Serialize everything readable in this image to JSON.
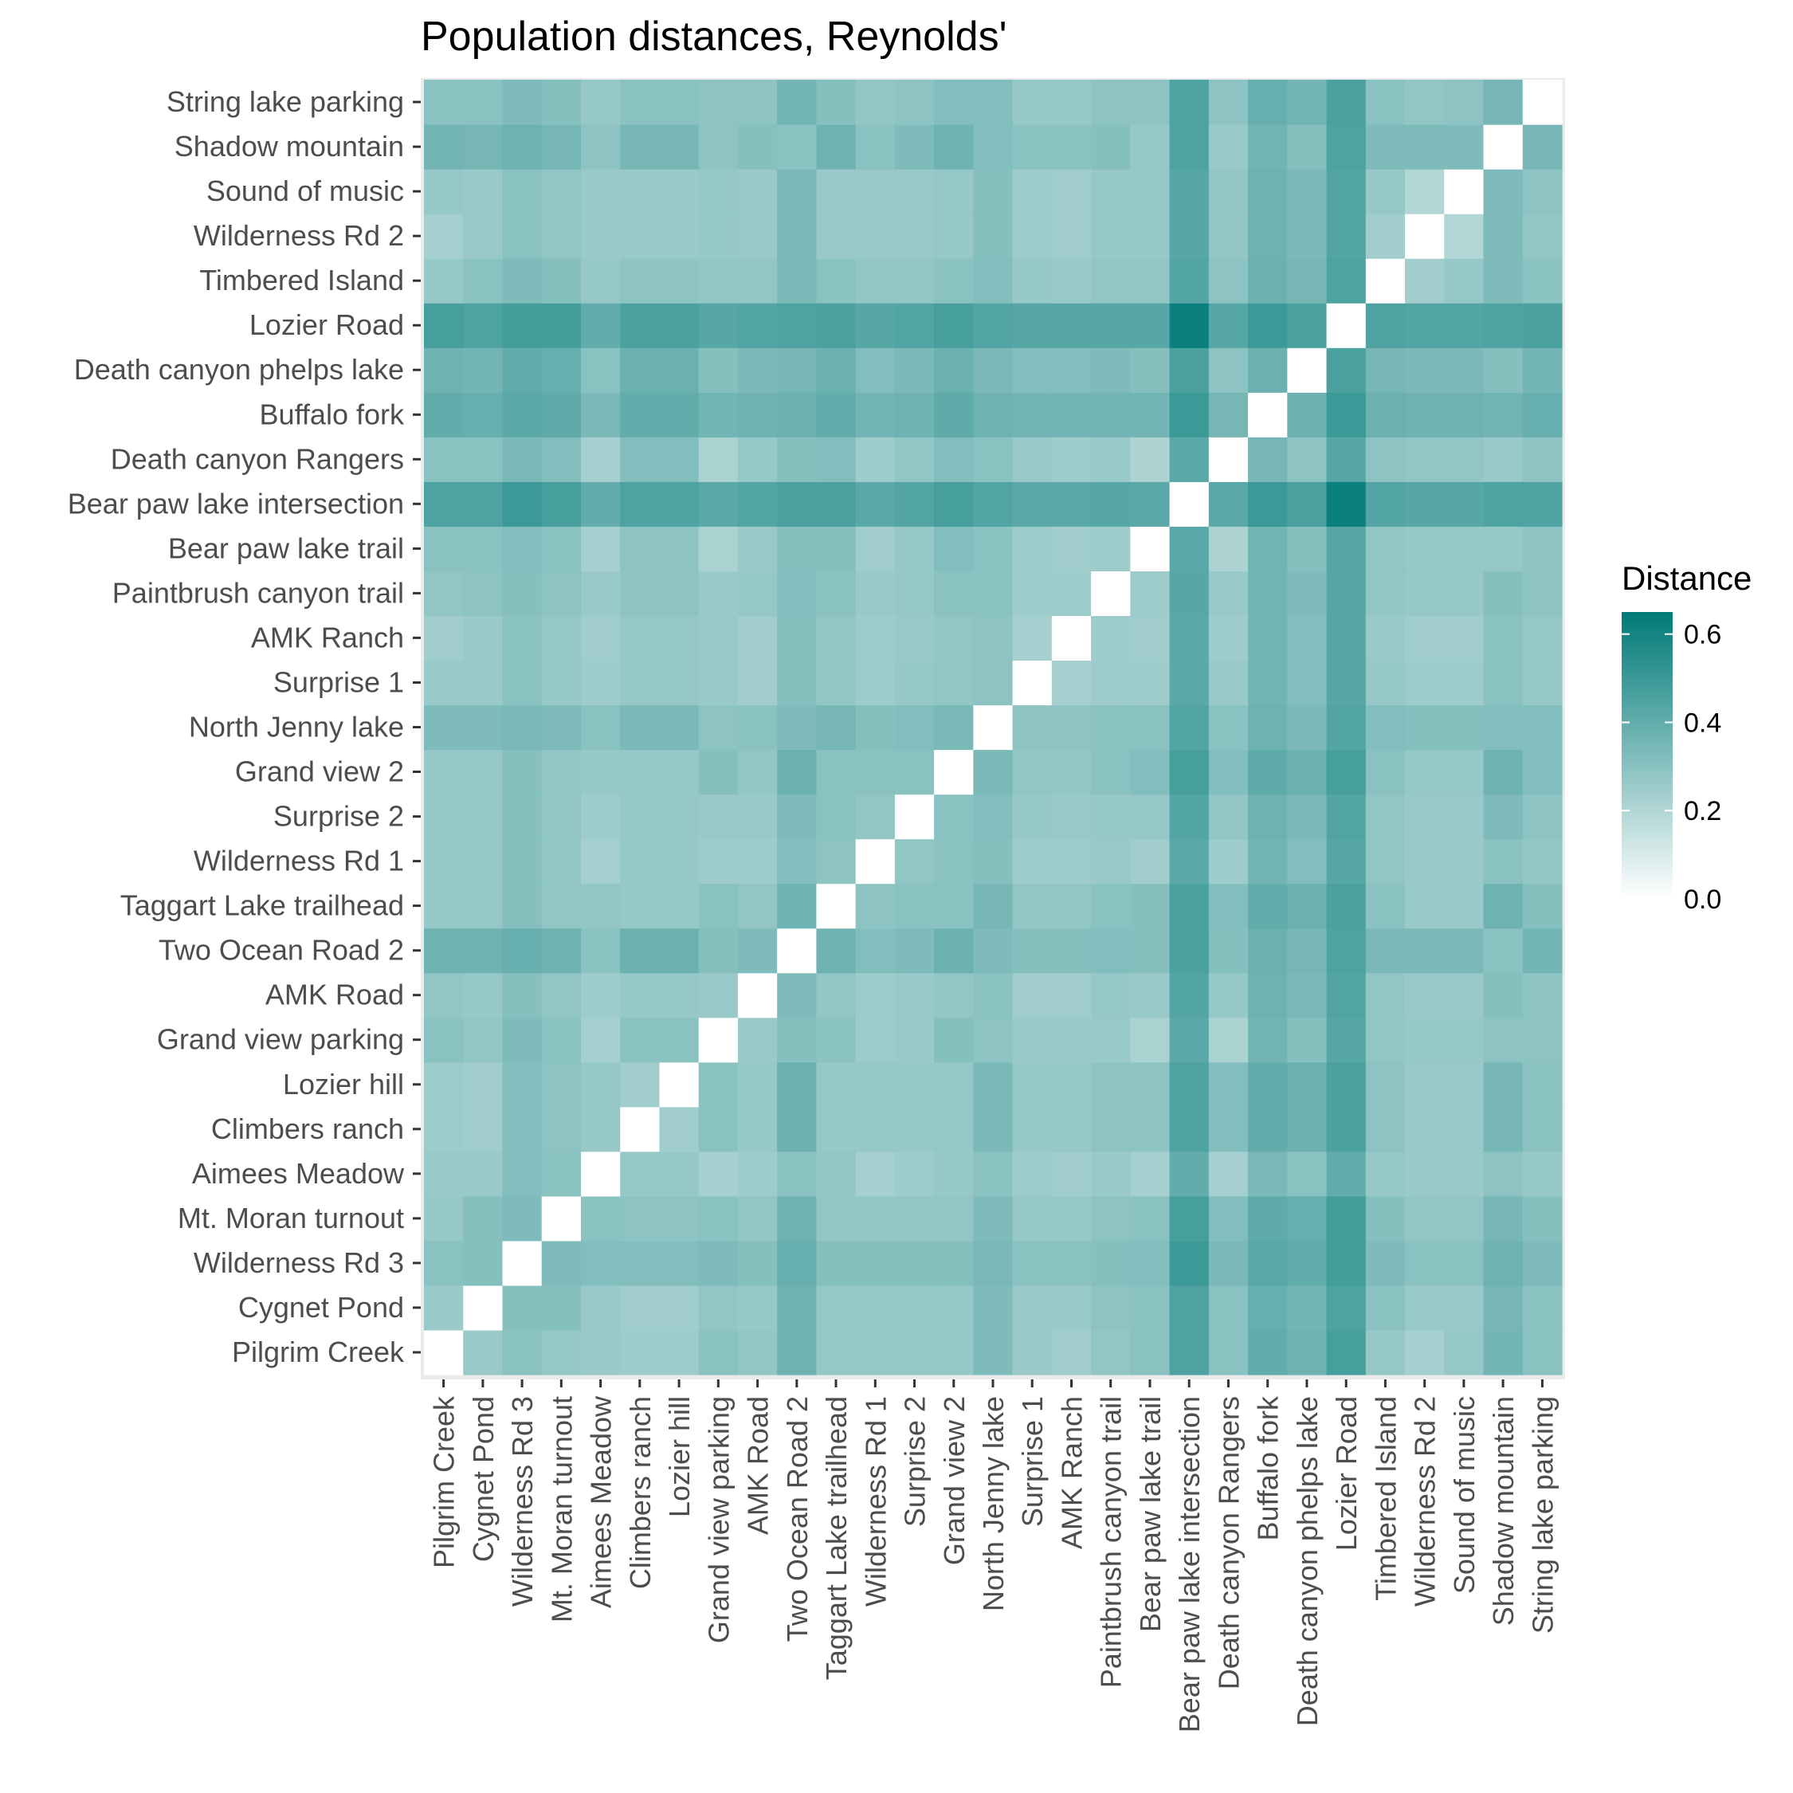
{
  "chart_data": {
    "type": "heatmap",
    "title": "Population distances, Reynolds'",
    "xlabel": "",
    "ylabel": "",
    "legend": {
      "title": "Distance",
      "position": "right",
      "ticks": [
        0.0,
        0.2,
        0.4,
        0.6
      ],
      "tick_labels": [
        "0.0",
        "0.2",
        "0.4",
        "0.6"
      ],
      "range": [
        0,
        0.65
      ]
    },
    "color_scale": {
      "low": "#ffffff",
      "high": "#007a78"
    },
    "panel_background": "#ebebeb",
    "categories": [
      "Pilgrim Creek",
      "Cygnet Pond",
      "Wilderness Rd 3",
      "Mt. Moran turnout",
      "Aimees Meadow",
      "Climbers ranch",
      "Lozier hill",
      "Grand view parking",
      "AMK Road",
      "Two Ocean Road 2",
      "Taggart Lake trailhead",
      "Wilderness Rd 1",
      "Surprise 2",
      "Grand view 2",
      "North Jenny lake",
      "Surprise 1",
      "AMK Ranch",
      "Paintbrush canyon trail",
      "Bear paw lake trail",
      "Bear paw lake intersection",
      "Death canyon Rangers",
      "Buffalo fork",
      "Death canyon phelps lake",
      "Lozier Road",
      "Timbered Island",
      "Wilderness Rd 2",
      "Sound of music",
      "Shadow mountain",
      "String lake parking"
    ],
    "values": [
      [
        0,
        0.26,
        0.3,
        0.27,
        0.26,
        0.25,
        0.25,
        0.3,
        0.28,
        0.37,
        0.27,
        0.27,
        0.27,
        0.27,
        0.33,
        0.26,
        0.24,
        0.28,
        0.3,
        0.45,
        0.3,
        0.4,
        0.37,
        0.47,
        0.27,
        0.23,
        0.27,
        0.36,
        0.3
      ],
      [
        0.26,
        0,
        0.31,
        0.31,
        0.26,
        0.24,
        0.24,
        0.28,
        0.27,
        0.37,
        0.27,
        0.27,
        0.27,
        0.27,
        0.33,
        0.26,
        0.26,
        0.29,
        0.3,
        0.45,
        0.3,
        0.39,
        0.36,
        0.45,
        0.3,
        0.26,
        0.26,
        0.35,
        0.3
      ],
      [
        0.3,
        0.31,
        0,
        0.33,
        0.32,
        0.32,
        0.32,
        0.33,
        0.31,
        0.39,
        0.31,
        0.31,
        0.31,
        0.31,
        0.34,
        0.3,
        0.3,
        0.31,
        0.32,
        0.5,
        0.34,
        0.42,
        0.4,
        0.48,
        0.33,
        0.3,
        0.3,
        0.37,
        0.33
      ],
      [
        0.27,
        0.31,
        0.33,
        0,
        0.3,
        0.29,
        0.29,
        0.3,
        0.28,
        0.37,
        0.28,
        0.28,
        0.28,
        0.28,
        0.33,
        0.27,
        0.27,
        0.29,
        0.3,
        0.47,
        0.32,
        0.41,
        0.39,
        0.48,
        0.31,
        0.28,
        0.28,
        0.35,
        0.31
      ],
      [
        0.26,
        0.26,
        0.32,
        0.3,
        0,
        0.27,
        0.27,
        0.23,
        0.25,
        0.3,
        0.28,
        0.23,
        0.25,
        0.27,
        0.3,
        0.25,
        0.24,
        0.26,
        0.23,
        0.4,
        0.23,
        0.34,
        0.3,
        0.4,
        0.27,
        0.26,
        0.26,
        0.29,
        0.27
      ],
      [
        0.25,
        0.24,
        0.32,
        0.29,
        0.27,
        0,
        0.24,
        0.3,
        0.27,
        0.38,
        0.27,
        0.27,
        0.27,
        0.27,
        0.34,
        0.27,
        0.27,
        0.29,
        0.29,
        0.45,
        0.32,
        0.4,
        0.38,
        0.46,
        0.29,
        0.26,
        0.26,
        0.35,
        0.3
      ],
      [
        0.25,
        0.24,
        0.32,
        0.29,
        0.27,
        0.24,
        0,
        0.3,
        0.27,
        0.38,
        0.27,
        0.27,
        0.27,
        0.27,
        0.34,
        0.27,
        0.27,
        0.29,
        0.29,
        0.45,
        0.32,
        0.4,
        0.38,
        0.46,
        0.29,
        0.26,
        0.26,
        0.35,
        0.3
      ],
      [
        0.3,
        0.28,
        0.33,
        0.3,
        0.23,
        0.3,
        0.3,
        0,
        0.26,
        0.31,
        0.3,
        0.25,
        0.26,
        0.31,
        0.29,
        0.26,
        0.26,
        0.26,
        0.22,
        0.42,
        0.22,
        0.36,
        0.31,
        0.43,
        0.28,
        0.27,
        0.27,
        0.29,
        0.29
      ],
      [
        0.28,
        0.27,
        0.31,
        0.28,
        0.25,
        0.27,
        0.27,
        0.26,
        0,
        0.33,
        0.28,
        0.25,
        0.26,
        0.28,
        0.3,
        0.24,
        0.24,
        0.27,
        0.26,
        0.44,
        0.27,
        0.37,
        0.34,
        0.44,
        0.28,
        0.26,
        0.26,
        0.31,
        0.29
      ],
      [
        0.37,
        0.37,
        0.39,
        0.37,
        0.3,
        0.38,
        0.38,
        0.31,
        0.33,
        0,
        0.37,
        0.32,
        0.33,
        0.38,
        0.33,
        0.31,
        0.31,
        0.32,
        0.31,
        0.46,
        0.31,
        0.38,
        0.35,
        0.45,
        0.34,
        0.34,
        0.34,
        0.3,
        0.36
      ],
      [
        0.27,
        0.27,
        0.31,
        0.28,
        0.28,
        0.27,
        0.27,
        0.3,
        0.28,
        0.37,
        0,
        0.29,
        0.3,
        0.3,
        0.35,
        0.28,
        0.28,
        0.3,
        0.31,
        0.46,
        0.32,
        0.4,
        0.38,
        0.46,
        0.3,
        0.26,
        0.26,
        0.37,
        0.31
      ],
      [
        0.27,
        0.27,
        0.31,
        0.28,
        0.23,
        0.27,
        0.27,
        0.25,
        0.25,
        0.32,
        0.29,
        0,
        0.28,
        0.3,
        0.31,
        0.25,
        0.25,
        0.26,
        0.24,
        0.42,
        0.25,
        0.36,
        0.32,
        0.43,
        0.28,
        0.26,
        0.26,
        0.3,
        0.28
      ],
      [
        0.27,
        0.27,
        0.31,
        0.28,
        0.25,
        0.27,
        0.27,
        0.26,
        0.26,
        0.33,
        0.3,
        0.28,
        0,
        0.3,
        0.32,
        0.27,
        0.26,
        0.27,
        0.27,
        0.44,
        0.28,
        0.37,
        0.34,
        0.44,
        0.28,
        0.26,
        0.26,
        0.33,
        0.29
      ],
      [
        0.27,
        0.27,
        0.31,
        0.28,
        0.27,
        0.27,
        0.27,
        0.31,
        0.28,
        0.38,
        0.3,
        0.3,
        0.3,
        0,
        0.34,
        0.28,
        0.28,
        0.3,
        0.32,
        0.47,
        0.32,
        0.41,
        0.38,
        0.47,
        0.3,
        0.27,
        0.27,
        0.37,
        0.32
      ],
      [
        0.33,
        0.33,
        0.34,
        0.33,
        0.3,
        0.34,
        0.34,
        0.29,
        0.3,
        0.33,
        0.35,
        0.31,
        0.32,
        0.34,
        0,
        0.29,
        0.29,
        0.3,
        0.3,
        0.44,
        0.3,
        0.37,
        0.34,
        0.44,
        0.32,
        0.31,
        0.31,
        0.32,
        0.32
      ],
      [
        0.26,
        0.26,
        0.3,
        0.27,
        0.25,
        0.27,
        0.27,
        0.26,
        0.24,
        0.31,
        0.28,
        0.25,
        0.27,
        0.28,
        0.29,
        0,
        0.23,
        0.25,
        0.25,
        0.42,
        0.26,
        0.36,
        0.32,
        0.43,
        0.27,
        0.25,
        0.25,
        0.3,
        0.27
      ],
      [
        0.24,
        0.26,
        0.3,
        0.27,
        0.24,
        0.27,
        0.27,
        0.26,
        0.24,
        0.31,
        0.28,
        0.25,
        0.26,
        0.28,
        0.29,
        0.23,
        0,
        0.25,
        0.24,
        0.42,
        0.25,
        0.36,
        0.32,
        0.43,
        0.26,
        0.24,
        0.24,
        0.3,
        0.27
      ],
      [
        0.28,
        0.29,
        0.31,
        0.29,
        0.26,
        0.29,
        0.29,
        0.26,
        0.27,
        0.32,
        0.3,
        0.26,
        0.27,
        0.3,
        0.3,
        0.25,
        0.25,
        0,
        0.25,
        0.43,
        0.26,
        0.36,
        0.33,
        0.43,
        0.28,
        0.27,
        0.27,
        0.31,
        0.29
      ],
      [
        0.3,
        0.3,
        0.32,
        0.3,
        0.23,
        0.29,
        0.29,
        0.22,
        0.26,
        0.31,
        0.31,
        0.24,
        0.27,
        0.32,
        0.3,
        0.25,
        0.24,
        0.25,
        0,
        0.42,
        0.21,
        0.36,
        0.31,
        0.43,
        0.28,
        0.27,
        0.27,
        0.27,
        0.29
      ],
      [
        0.45,
        0.45,
        0.5,
        0.47,
        0.4,
        0.45,
        0.45,
        0.42,
        0.44,
        0.46,
        0.46,
        0.42,
        0.44,
        0.47,
        0.44,
        0.42,
        0.42,
        0.43,
        0.42,
        0,
        0.42,
        0.5,
        0.46,
        0.62,
        0.44,
        0.43,
        0.43,
        0.45,
        0.45
      ],
      [
        0.3,
        0.3,
        0.34,
        0.32,
        0.23,
        0.32,
        0.32,
        0.22,
        0.27,
        0.31,
        0.32,
        0.25,
        0.28,
        0.32,
        0.3,
        0.26,
        0.25,
        0.26,
        0.21,
        0.42,
        0,
        0.35,
        0.29,
        0.43,
        0.29,
        0.28,
        0.28,
        0.26,
        0.29
      ],
      [
        0.4,
        0.39,
        0.42,
        0.41,
        0.34,
        0.4,
        0.4,
        0.36,
        0.37,
        0.38,
        0.4,
        0.36,
        0.37,
        0.41,
        0.37,
        0.36,
        0.36,
        0.36,
        0.36,
        0.5,
        0.35,
        0,
        0.38,
        0.5,
        0.38,
        0.37,
        0.37,
        0.36,
        0.39
      ],
      [
        0.37,
        0.36,
        0.4,
        0.39,
        0.3,
        0.38,
        0.38,
        0.31,
        0.34,
        0.35,
        0.38,
        0.32,
        0.34,
        0.38,
        0.34,
        0.32,
        0.32,
        0.33,
        0.31,
        0.46,
        0.29,
        0.38,
        0,
        0.46,
        0.35,
        0.34,
        0.34,
        0.31,
        0.36
      ],
      [
        0.47,
        0.45,
        0.48,
        0.48,
        0.4,
        0.46,
        0.46,
        0.43,
        0.44,
        0.45,
        0.46,
        0.43,
        0.44,
        0.47,
        0.44,
        0.43,
        0.43,
        0.43,
        0.43,
        0.62,
        0.43,
        0.5,
        0.46,
        0,
        0.45,
        0.44,
        0.44,
        0.45,
        0.46
      ],
      [
        0.27,
        0.3,
        0.33,
        0.31,
        0.27,
        0.29,
        0.29,
        0.28,
        0.28,
        0.34,
        0.3,
        0.28,
        0.28,
        0.3,
        0.32,
        0.27,
        0.26,
        0.28,
        0.28,
        0.44,
        0.29,
        0.38,
        0.35,
        0.45,
        0,
        0.24,
        0.27,
        0.33,
        0.3
      ],
      [
        0.23,
        0.26,
        0.3,
        0.28,
        0.26,
        0.26,
        0.26,
        0.27,
        0.26,
        0.34,
        0.26,
        0.26,
        0.26,
        0.27,
        0.31,
        0.25,
        0.24,
        0.27,
        0.27,
        0.43,
        0.28,
        0.37,
        0.34,
        0.44,
        0.24,
        0,
        0.2,
        0.33,
        0.28
      ],
      [
        0.27,
        0.26,
        0.3,
        0.28,
        0.26,
        0.26,
        0.26,
        0.27,
        0.26,
        0.34,
        0.26,
        0.26,
        0.26,
        0.27,
        0.31,
        0.25,
        0.24,
        0.27,
        0.27,
        0.43,
        0.28,
        0.37,
        0.34,
        0.44,
        0.27,
        0.2,
        0,
        0.33,
        0.29
      ],
      [
        0.36,
        0.35,
        0.37,
        0.35,
        0.29,
        0.35,
        0.35,
        0.29,
        0.31,
        0.3,
        0.37,
        0.3,
        0.33,
        0.37,
        0.32,
        0.3,
        0.3,
        0.31,
        0.27,
        0.45,
        0.26,
        0.36,
        0.31,
        0.45,
        0.33,
        0.33,
        0.33,
        0,
        0.35
      ],
      [
        0.3,
        0.3,
        0.33,
        0.31,
        0.27,
        0.3,
        0.3,
        0.29,
        0.29,
        0.36,
        0.31,
        0.28,
        0.29,
        0.32,
        0.32,
        0.27,
        0.27,
        0.29,
        0.29,
        0.45,
        0.29,
        0.39,
        0.36,
        0.46,
        0.3,
        0.28,
        0.29,
        0.35,
        0
      ]
    ]
  }
}
